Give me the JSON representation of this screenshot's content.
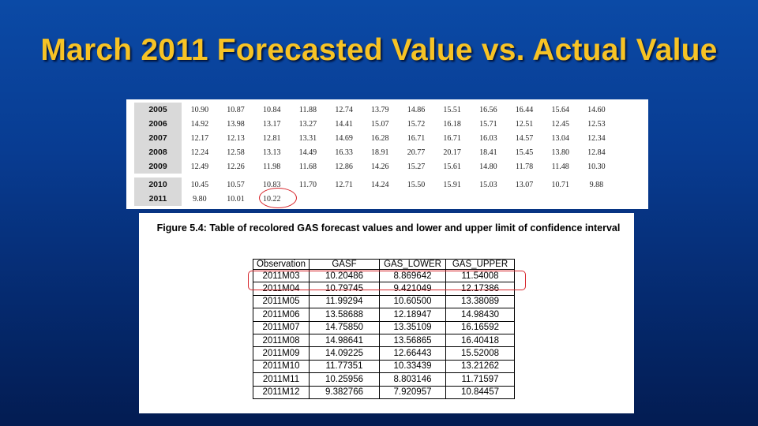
{
  "slide": {
    "title": "March 2011 Forecasted Value vs. Actual Value"
  },
  "year_table": {
    "rows": [
      {
        "year": "2005",
        "values": [
          "10.90",
          "10.87",
          "10.84",
          "11.88",
          "12.74",
          "13.79",
          "14.86",
          "15.51",
          "16.56",
          "16.44",
          "15.64",
          "14.60"
        ]
      },
      {
        "year": "2006",
        "values": [
          "14.92",
          "13.98",
          "13.17",
          "13.27",
          "14.41",
          "15.07",
          "15.72",
          "16.18",
          "15.71",
          "12.51",
          "12.45",
          "12.53"
        ]
      },
      {
        "year": "2007",
        "values": [
          "12.17",
          "12.13",
          "12.81",
          "13.31",
          "14.69",
          "16.28",
          "16.71",
          "16.71",
          "16.03",
          "14.57",
          "13.04",
          "12.34"
        ]
      },
      {
        "year": "2008",
        "values": [
          "12.24",
          "12.58",
          "13.13",
          "14.49",
          "16.33",
          "18.91",
          "20.77",
          "20.17",
          "18.41",
          "15.45",
          "13.80",
          "12.84"
        ]
      },
      {
        "year": "2009",
        "values": [
          "12.49",
          "12.26",
          "11.98",
          "11.68",
          "12.86",
          "14.26",
          "15.27",
          "15.61",
          "14.80",
          "11.78",
          "11.48",
          "10.30"
        ]
      },
      {
        "year": "2010",
        "values": [
          "10.45",
          "10.57",
          "10.83",
          "11.70",
          "12.71",
          "14.24",
          "15.50",
          "15.91",
          "15.03",
          "13.07",
          "10.71",
          "9.88"
        ]
      },
      {
        "year": "2011",
        "values": [
          "9.80",
          "10.01",
          "10.22",
          "",
          "",
          "",
          "",
          "",
          "",
          "",
          "",
          ""
        ]
      }
    ]
  },
  "figure": {
    "caption": "Figure 5.4: Table of recolored GAS forecast values and lower and upper limit of confidence interval",
    "headers": [
      "Observation",
      "GASF",
      "GAS_LOWER",
      "GAS_UPPER"
    ],
    "rows": [
      [
        "2011M03",
        "10.20486",
        "8.869642",
        "11.54008"
      ],
      [
        "2011M04",
        "10.79745",
        "9.421049",
        "12.17386"
      ],
      [
        "2011M05",
        "11.99294",
        "10.60500",
        "13.38089"
      ],
      [
        "2011M06",
        "13.58688",
        "12.18947",
        "14.98430"
      ],
      [
        "2011M07",
        "14.75850",
        "13.35109",
        "16.16592"
      ],
      [
        "2011M08",
        "14.98641",
        "13.56865",
        "16.40418"
      ],
      [
        "2011M09",
        "14.09225",
        "12.66443",
        "15.52008"
      ],
      [
        "2011M10",
        "11.77351",
        "10.33439",
        "13.21262"
      ],
      [
        "2011M11",
        "10.25956",
        "8.803146",
        "11.71597"
      ],
      [
        "2011M12",
        "9.382766",
        "7.920957",
        "10.84457"
      ]
    ]
  },
  "colors": {
    "title": "#f7c325",
    "highlight": "#d7262c"
  }
}
